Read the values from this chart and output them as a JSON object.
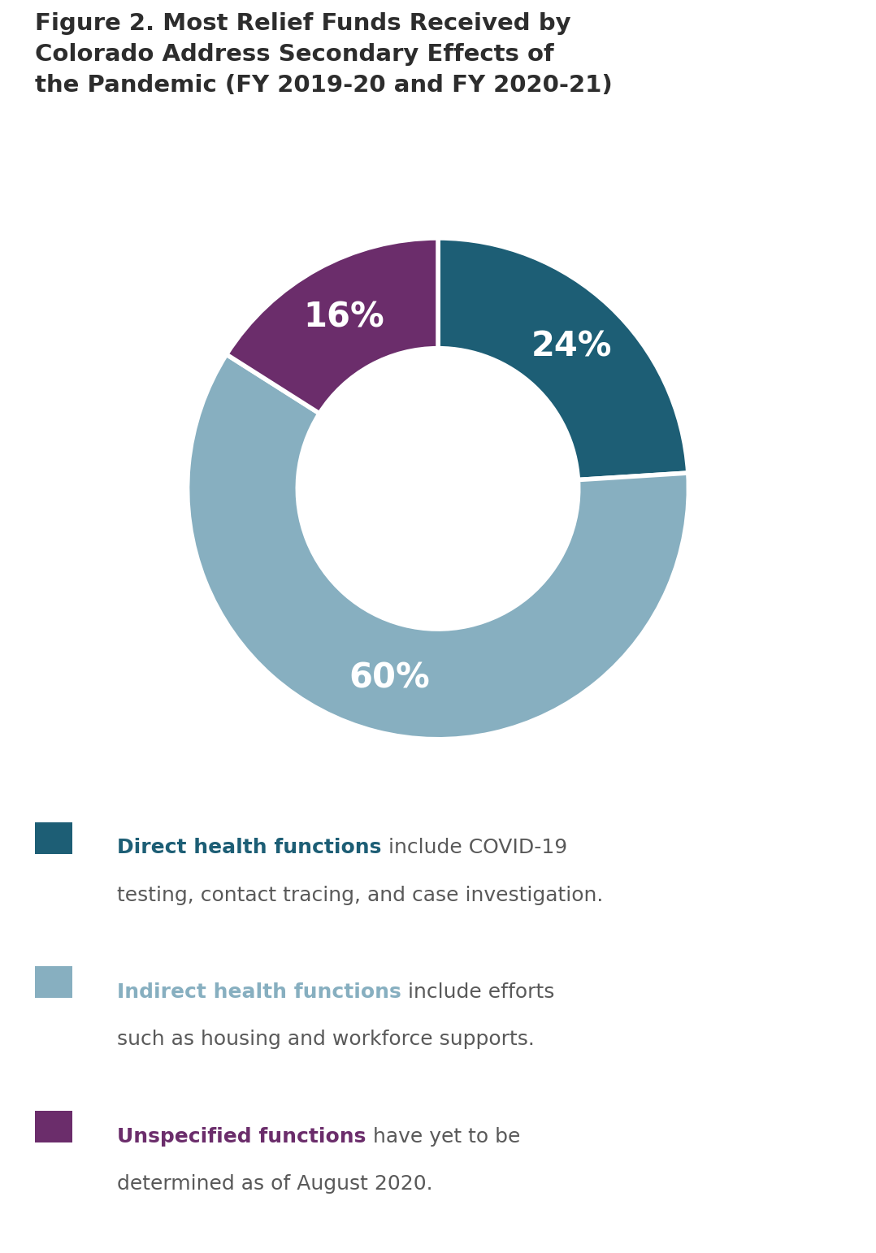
{
  "title_lines": [
    "Figure 2. Most Relief Funds Received by",
    "Colorado Address Secondary Effects of",
    "the Pandemic (FY 2019-20 and FY 2020-21)"
  ],
  "slices": [
    24,
    60,
    16
  ],
  "slice_labels": [
    "24%",
    "60%",
    "16%"
  ],
  "slice_colors": [
    "#1d5e75",
    "#87afc0",
    "#6b2d6b"
  ],
  "legend": [
    {
      "color": "#1d5e75",
      "bold_text": "Direct health functions",
      "rest_line1": " include COVID-19",
      "line2": "testing, contact tracing, and case investigation."
    },
    {
      "color": "#87afc0",
      "bold_text": "Indirect health functions",
      "rest_line1": " include efforts",
      "line2": "such as housing and workforce supports."
    },
    {
      "color": "#6b2d6b",
      "bold_text": "Unspecified functions",
      "rest_line1": " have yet to be",
      "line2": "determined as of August 2020."
    }
  ],
  "background_color": "#ffffff",
  "title_color": "#2d2d2d",
  "legend_text_color": "#595959",
  "donut_width": 0.44,
  "label_fontsize": 30,
  "title_fontsize": 21,
  "legend_fontsize": 18
}
